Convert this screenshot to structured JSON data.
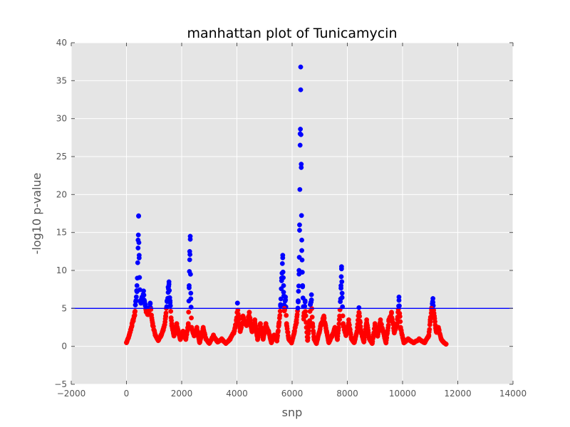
{
  "chart_data": {
    "type": "scatter",
    "title": "manhattan plot of Tunicamycin",
    "xlabel": "snp",
    "ylabel": "-log10 p-value",
    "xlim": [
      -2000,
      14000
    ],
    "ylim": [
      -5,
      40
    ],
    "xticks": [
      -2000,
      0,
      2000,
      4000,
      6000,
      8000,
      10000,
      12000,
      14000
    ],
    "xtick_labels": [
      "−2000",
      "0",
      "2000",
      "4000",
      "6000",
      "8000",
      "10000",
      "12000",
      "14000"
    ],
    "yticks": [
      -5,
      0,
      5,
      10,
      15,
      20,
      25,
      30,
      35,
      40
    ],
    "ytick_labels": [
      "−5",
      "0",
      "5",
      "10",
      "15",
      "20",
      "25",
      "30",
      "35",
      "40"
    ],
    "grid": true,
    "threshold": 5,
    "colors": {
      "above_threshold": "#0000ff",
      "below_threshold": "#ff0000",
      "threshold_line": "#0000ff",
      "plot_background": "#e5e5e5",
      "grid": "#ffffff"
    },
    "peaks": [
      {
        "x": 0,
        "y": 0.5
      },
      {
        "x": 100,
        "y": 1.5
      },
      {
        "x": 200,
        "y": 3
      },
      {
        "x": 300,
        "y": 4.5
      },
      {
        "x": 380,
        "y": 8
      },
      {
        "x": 420,
        "y": 14
      },
      {
        "x": 440,
        "y": 17.2
      },
      {
        "x": 460,
        "y": 12
      },
      {
        "x": 500,
        "y": 6
      },
      {
        "x": 560,
        "y": 6.5
      },
      {
        "x": 620,
        "y": 7.3
      },
      {
        "x": 700,
        "y": 5.2
      },
      {
        "x": 800,
        "y": 4.5
      },
      {
        "x": 860,
        "y": 5.7
      },
      {
        "x": 950,
        "y": 3
      },
      {
        "x": 1050,
        "y": 1.5
      },
      {
        "x": 1150,
        "y": 0.8
      },
      {
        "x": 1250,
        "y": 1.5
      },
      {
        "x": 1350,
        "y": 2.5
      },
      {
        "x": 1420,
        "y": 4
      },
      {
        "x": 1470,
        "y": 6
      },
      {
        "x": 1510,
        "y": 7.8
      },
      {
        "x": 1540,
        "y": 8.5
      },
      {
        "x": 1580,
        "y": 6
      },
      {
        "x": 1640,
        "y": 3
      },
      {
        "x": 1720,
        "y": 1.5
      },
      {
        "x": 1820,
        "y": 3
      },
      {
        "x": 1950,
        "y": 1
      },
      {
        "x": 2050,
        "y": 2
      },
      {
        "x": 2150,
        "y": 1
      },
      {
        "x": 2240,
        "y": 3
      },
      {
        "x": 2270,
        "y": 8
      },
      {
        "x": 2290,
        "y": 12.5
      },
      {
        "x": 2310,
        "y": 14.5
      },
      {
        "x": 2330,
        "y": 7
      },
      {
        "x": 2360,
        "y": 2.5
      },
      {
        "x": 2450,
        "y": 1.5
      },
      {
        "x": 2550,
        "y": 2.5
      },
      {
        "x": 2650,
        "y": 0.5
      },
      {
        "x": 2780,
        "y": 2.5
      },
      {
        "x": 2880,
        "y": 1
      },
      {
        "x": 3000,
        "y": 0.4
      },
      {
        "x": 3150,
        "y": 1.5
      },
      {
        "x": 3300,
        "y": 0.6
      },
      {
        "x": 3450,
        "y": 1
      },
      {
        "x": 3600,
        "y": 0.4
      },
      {
        "x": 3750,
        "y": 1
      },
      {
        "x": 3900,
        "y": 2
      },
      {
        "x": 3980,
        "y": 3.5
      },
      {
        "x": 4020,
        "y": 5.7
      },
      {
        "x": 4060,
        "y": 4
      },
      {
        "x": 4120,
        "y": 2
      },
      {
        "x": 4220,
        "y": 4
      },
      {
        "x": 4350,
        "y": 3
      },
      {
        "x": 4450,
        "y": 4.5
      },
      {
        "x": 4550,
        "y": 2
      },
      {
        "x": 4650,
        "y": 3.5
      },
      {
        "x": 4750,
        "y": 1
      },
      {
        "x": 4850,
        "y": 3
      },
      {
        "x": 4950,
        "y": 1
      },
      {
        "x": 5050,
        "y": 3
      },
      {
        "x": 5150,
        "y": 2
      },
      {
        "x": 5250,
        "y": 0.5
      },
      {
        "x": 5350,
        "y": 1.5
      },
      {
        "x": 5450,
        "y": 0.8
      },
      {
        "x": 5520,
        "y": 3
      },
      {
        "x": 5580,
        "y": 5.5
      },
      {
        "x": 5620,
        "y": 9
      },
      {
        "x": 5660,
        "y": 12
      },
      {
        "x": 5690,
        "y": 8
      },
      {
        "x": 5720,
        "y": 5
      },
      {
        "x": 5760,
        "y": 6.5
      },
      {
        "x": 5800,
        "y": 3
      },
      {
        "x": 5880,
        "y": 1
      },
      {
        "x": 5980,
        "y": 0.5
      },
      {
        "x": 6080,
        "y": 2
      },
      {
        "x": 6160,
        "y": 3.5
      },
      {
        "x": 6220,
        "y": 6
      },
      {
        "x": 6250,
        "y": 10
      },
      {
        "x": 6270,
        "y": 16
      },
      {
        "x": 6290,
        "y": 28
      },
      {
        "x": 6310,
        "y": 36.8
      },
      {
        "x": 6330,
        "y": 24
      },
      {
        "x": 6350,
        "y": 14
      },
      {
        "x": 6380,
        "y": 8
      },
      {
        "x": 6420,
        "y": 4
      },
      {
        "x": 6470,
        "y": 6
      },
      {
        "x": 6520,
        "y": 2.5
      },
      {
        "x": 6560,
        "y": 0.8
      },
      {
        "x": 6620,
        "y": 3
      },
      {
        "x": 6660,
        "y": 5.5
      },
      {
        "x": 6700,
        "y": 6.8
      },
      {
        "x": 6740,
        "y": 3
      },
      {
        "x": 6800,
        "y": 1
      },
      {
        "x": 6880,
        "y": 0.4
      },
      {
        "x": 6950,
        "y": 1.5
      },
      {
        "x": 7050,
        "y": 3
      },
      {
        "x": 7150,
        "y": 4
      },
      {
        "x": 7250,
        "y": 2
      },
      {
        "x": 7330,
        "y": 0.5
      },
      {
        "x": 7450,
        "y": 1.5
      },
      {
        "x": 7550,
        "y": 2.5
      },
      {
        "x": 7640,
        "y": 1
      },
      {
        "x": 7720,
        "y": 4
      },
      {
        "x": 7770,
        "y": 8
      },
      {
        "x": 7790,
        "y": 10.5
      },
      {
        "x": 7810,
        "y": 7
      },
      {
        "x": 7850,
        "y": 3
      },
      {
        "x": 7950,
        "y": 1.5
      },
      {
        "x": 8050,
        "y": 3.5
      },
      {
        "x": 8150,
        "y": 1
      },
      {
        "x": 8250,
        "y": 0.5
      },
      {
        "x": 8350,
        "y": 2
      },
      {
        "x": 8420,
        "y": 5.1
      },
      {
        "x": 8500,
        "y": 2
      },
      {
        "x": 8600,
        "y": 0.6
      },
      {
        "x": 8700,
        "y": 3.5
      },
      {
        "x": 8800,
        "y": 1
      },
      {
        "x": 8900,
        "y": 0.4
      },
      {
        "x": 9000,
        "y": 3
      },
      {
        "x": 9100,
        "y": 1.5
      },
      {
        "x": 9200,
        "y": 3.5
      },
      {
        "x": 9300,
        "y": 2
      },
      {
        "x": 9400,
        "y": 0.5
      },
      {
        "x": 9500,
        "y": 3.5
      },
      {
        "x": 9600,
        "y": 4.5
      },
      {
        "x": 9700,
        "y": 2
      },
      {
        "x": 9800,
        "y": 3
      },
      {
        "x": 9870,
        "y": 6.5
      },
      {
        "x": 9930,
        "y": 2.5
      },
      {
        "x": 10050,
        "y": 0.5
      },
      {
        "x": 10200,
        "y": 1
      },
      {
        "x": 10400,
        "y": 0.5
      },
      {
        "x": 10600,
        "y": 1
      },
      {
        "x": 10800,
        "y": 0.5
      },
      {
        "x": 10950,
        "y": 1.5
      },
      {
        "x": 11000,
        "y": 3.5
      },
      {
        "x": 11050,
        "y": 5
      },
      {
        "x": 11100,
        "y": 6.3
      },
      {
        "x": 11150,
        "y": 4
      },
      {
        "x": 11220,
        "y": 2
      },
      {
        "x": 11300,
        "y": 2.5
      },
      {
        "x": 11400,
        "y": 1
      },
      {
        "x": 11500,
        "y": 0.5
      },
      {
        "x": 11580,
        "y": 0.3
      }
    ]
  }
}
